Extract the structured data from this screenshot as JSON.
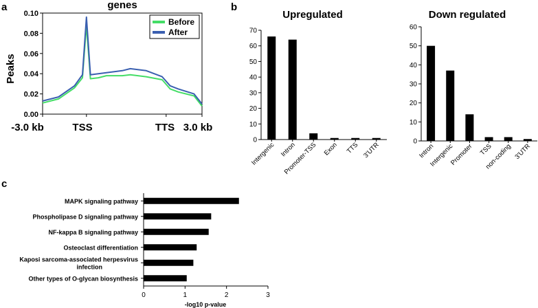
{
  "panel_labels": [
    "a",
    "b",
    "c"
  ],
  "chart_data": [
    {
      "id": "a",
      "type": "line",
      "title": "genes",
      "xlabel": "",
      "ylabel": "Peaks",
      "ylim": [
        0,
        0.1
      ],
      "yticks": [
        "0.00",
        "0.02",
        "0.04",
        "0.06",
        "0.08",
        "0.10"
      ],
      "xticks": [
        "-3.0 kb",
        "TSS",
        "TTS",
        "3.0 kb"
      ],
      "x_positions": [
        0,
        20,
        40,
        50,
        55,
        60,
        70,
        80,
        90,
        100,
        110,
        130,
        150,
        160,
        170,
        190,
        200
      ],
      "series": [
        {
          "name": "Before",
          "color": "#44dd66",
          "values": [
            0.011,
            0.015,
            0.026,
            0.036,
            0.088,
            0.035,
            0.036,
            0.038,
            0.038,
            0.038,
            0.039,
            0.037,
            0.034,
            0.025,
            0.022,
            0.018,
            0.008
          ]
        },
        {
          "name": "After",
          "color": "#3a5fb0",
          "values": [
            0.013,
            0.017,
            0.028,
            0.039,
            0.096,
            0.039,
            0.04,
            0.041,
            0.042,
            0.043,
            0.045,
            0.043,
            0.037,
            0.028,
            0.025,
            0.02,
            0.01
          ]
        }
      ],
      "legend": [
        "Before",
        "After"
      ],
      "legend_position": "top-right"
    },
    {
      "id": "b-up",
      "type": "bar",
      "title": "Upregulated",
      "categories": [
        "Intergenic",
        "Intron",
        "Promoter-TSS",
        "Exon",
        "TTS",
        "3'UTR"
      ],
      "values": [
        66,
        64,
        4,
        1,
        1,
        1
      ],
      "ylim": [
        0,
        70
      ],
      "yticks": [
        "0",
        "10",
        "20",
        "30",
        "40",
        "50",
        "60",
        "70"
      ]
    },
    {
      "id": "b-down",
      "type": "bar",
      "title": "Down regulated",
      "categories": [
        "Intron",
        "Intergenic",
        "Promoter",
        "TSS",
        "non-coding",
        "3'UTR"
      ],
      "values": [
        50,
        37,
        14,
        2,
        2,
        1
      ],
      "ylim": [
        0,
        60
      ],
      "yticks": [
        "0",
        "10",
        "20",
        "30",
        "40",
        "50",
        "60"
      ]
    },
    {
      "id": "c",
      "type": "bar",
      "orientation": "horizontal",
      "title": "",
      "categories": [
        [
          "MAPK signaling pathway"
        ],
        [
          "Phospholipase D signaling pathway"
        ],
        [
          "NF-kappa B signaling pathway"
        ],
        [
          "Osteoclast differentiation"
        ],
        [
          "Kaposi sarcoma-associated herpesvirus",
          "infection"
        ],
        [
          "Other types of O-glycan biosynthesis"
        ]
      ],
      "values": [
        2.3,
        1.63,
        1.57,
        1.28,
        1.2,
        1.04
      ],
      "xlabel": "-log10 p-value",
      "xlim": [
        0,
        3
      ],
      "xticks": [
        "0",
        "1",
        "2",
        "3"
      ]
    }
  ]
}
